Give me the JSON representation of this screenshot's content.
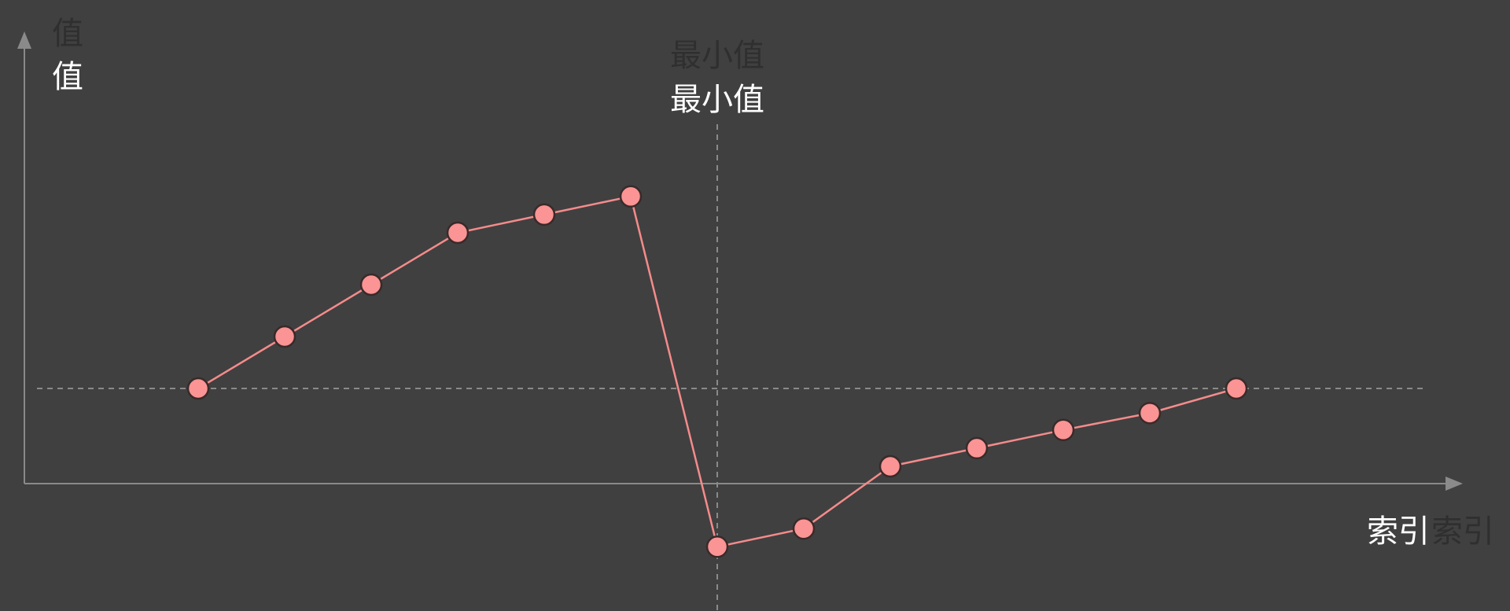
{
  "chart_data": {
    "type": "line",
    "ylabel": "值",
    "xlabel": "索引",
    "annotation": "最小值",
    "x": [
      0,
      1,
      2,
      3,
      4,
      5,
      6,
      7,
      8,
      9,
      10,
      11,
      12
    ],
    "y": [
      0,
      2,
      4,
      6,
      6.7,
      7.4,
      -6.1,
      -5.4,
      -3,
      -2.3,
      -1.6,
      -0.95,
      0
    ],
    "reference_y": 0,
    "min_index": 6,
    "ylim": [
      -7,
      10
    ],
    "grid": false,
    "legend": "none",
    "colors": {
      "background": "#404040",
      "axis": "#8a8a8a",
      "series": "#f58b8b",
      "marker_fill": "#fb9494",
      "marker_stroke": "#3a2a2a",
      "guide": "#8a8a8a"
    }
  }
}
